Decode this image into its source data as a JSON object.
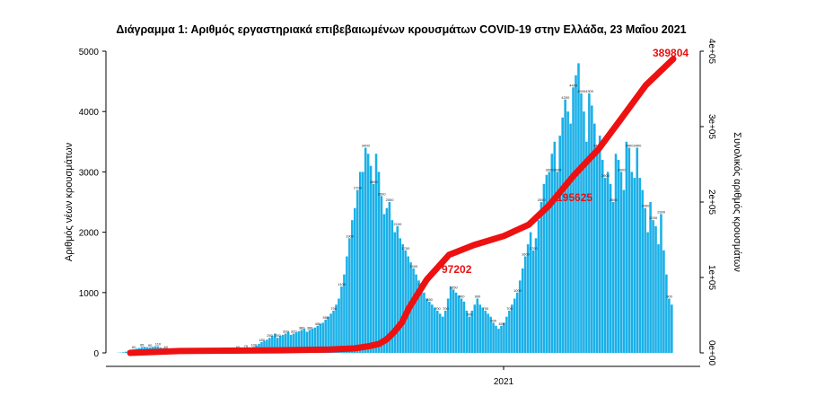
{
  "chart_data": {
    "type": "bar+line",
    "title": "Διάγραμμα 1: Αριθμός εργαστηριακά επιβεβαιωμένων κρουσμάτων COVID-19 στην Ελλάδα, 23 Μαΐου 2021",
    "xlabel": "",
    "x_tick_labels": [
      "2021"
    ],
    "ylabel_left": "Αριθμός νέων κρουσμάτων",
    "ylabel_right": "Συνολικός αριθμός κρουσμάτων",
    "ylim_left": [
      0,
      5000
    ],
    "yticks_left": [
      "0",
      "1000",
      "2000",
      "3000",
      "4000",
      "5000"
    ],
    "ylim_right": [
      0,
      400000
    ],
    "yticks_right": [
      "0e+00",
      "1e+05",
      "2e+05",
      "3e+05",
      "4e+05"
    ],
    "grid": false,
    "colors": {
      "bars": "#1ab0e8",
      "line": "#ee1111",
      "annotation": "#e81010"
    },
    "series": [
      {
        "kind": "bar",
        "axis": "left",
        "description_points": "daily new cases, approximate readings from March 2020 to 23 May 2021",
        "values": [
          3,
          5,
          10,
          20,
          40,
          55,
          60,
          70,
          80,
          95,
          100,
          95,
          90,
          100,
          110,
          110,
          90,
          80,
          60,
          50,
          40,
          35,
          30,
          25,
          20,
          15,
          12,
          10,
          10,
          8,
          10,
          12,
          15,
          20,
          20,
          25,
          30,
          25,
          30,
          35,
          40,
          45,
          50,
          55,
          60,
          60,
          65,
          70,
          75,
          80,
          90,
          100,
          120,
          150,
          180,
          200,
          220,
          250,
          280,
          320,
          250,
          280,
          300,
          320,
          350,
          300,
          320,
          340,
          360,
          380,
          400,
          350,
          380,
          400,
          420,
          450,
          480,
          500,
          550,
          600,
          650,
          700,
          800,
          900,
          1100,
          1300,
          1600,
          1900,
          2200,
          2400,
          2700,
          3000,
          3000,
          3400,
          3300,
          3100,
          2800,
          3300,
          3000,
          2600,
          2300,
          2400,
          2500,
          2200,
          2000,
          2100,
          1900,
          1800,
          1700,
          1600,
          1500,
          1400,
          1300,
          1200,
          1100,
          1000,
          900,
          850,
          800,
          750,
          700,
          650,
          600,
          700,
          900,
          1100,
          1050,
          1000,
          950,
          900,
          850,
          700,
          600,
          700,
          800,
          900,
          800,
          750,
          700,
          650,
          600,
          500,
          450,
          400,
          450,
          500,
          600,
          700,
          800,
          900,
          1000,
          1200,
          1400,
          1600,
          1800,
          2000,
          1700,
          1900,
          2200,
          2500,
          2800,
          2950,
          3000,
          3300,
          3500,
          3000,
          3600,
          3900,
          4200,
          4000,
          3800,
          4400,
          4600,
          4800,
          4300,
          4000,
          3500,
          4300,
          4100,
          3800,
          3400,
          3600,
          3200,
          2900,
          3000,
          2800,
          2500,
          3300,
          3200,
          3000,
          2700,
          3500,
          3400,
          3000,
          2900,
          3400,
          2900,
          2700,
          2400,
          2000,
          2500,
          2200,
          2100,
          1800,
          2300,
          1700,
          1300,
          900,
          800
        ]
      },
      {
        "kind": "line",
        "axis": "right",
        "description_points": "cumulative cases, approximate readings",
        "values": [
          0,
          2500,
          3000,
          3500,
          4500,
          6000,
          9000,
          12000,
          18000,
          28000,
          40000,
          60000,
          97000,
          130000,
          143000,
          155000,
          170000,
          195000,
          235000,
          270000,
          310000,
          355000,
          389804
        ],
        "positions": [
          0,
          20,
          40,
          60,
          80,
          90,
          96,
          100,
          103,
          106,
          109,
          112,
          119,
          128,
          138,
          150,
          160,
          168,
          178,
          188,
          197,
          207,
          218
        ]
      }
    ],
    "annotations": [
      "389804",
      "195625",
      "97202"
    ]
  }
}
